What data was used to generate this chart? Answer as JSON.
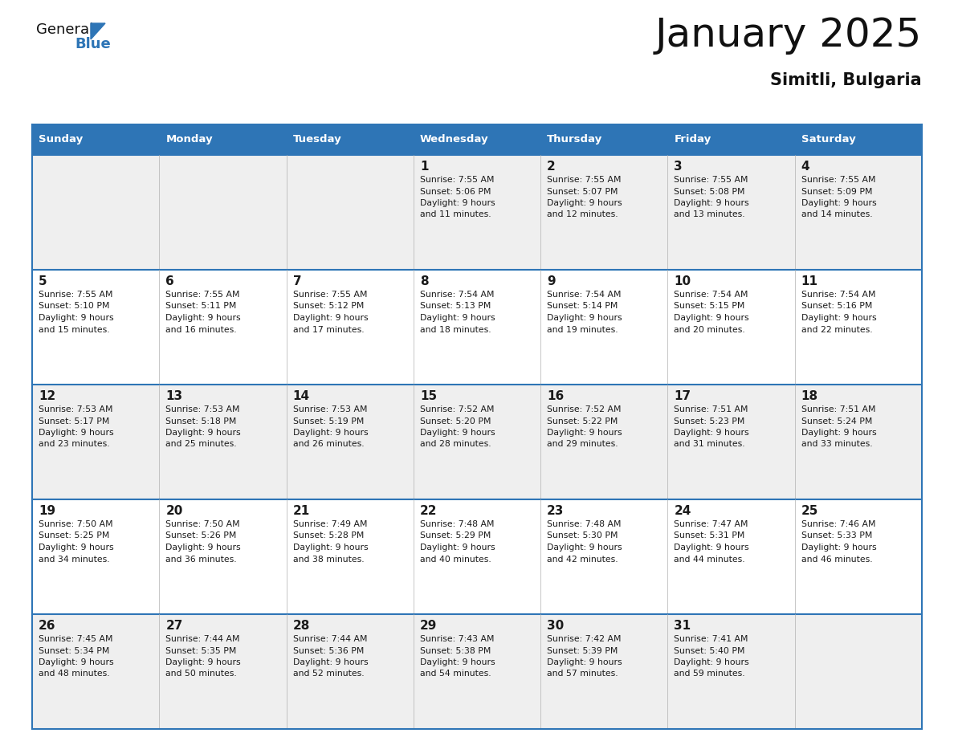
{
  "title": "January 2025",
  "subtitle": "Simitli, Bulgaria",
  "header_color": "#2E75B6",
  "header_text_color": "#FFFFFF",
  "cell_bg_row0": "#EFEFEF",
  "cell_bg_row1": "#FFFFFF",
  "cell_bg_row2": "#EFEFEF",
  "cell_bg_row3": "#FFFFFF",
  "cell_bg_row4": "#EFEFEF",
  "border_color": "#2E75B6",
  "text_color": "#1a1a1a",
  "days_of_week": [
    "Sunday",
    "Monday",
    "Tuesday",
    "Wednesday",
    "Thursday",
    "Friday",
    "Saturday"
  ],
  "weeks": [
    [
      {
        "day": "",
        "sunrise": "",
        "sunset": "",
        "daylight1": "",
        "daylight2": ""
      },
      {
        "day": "",
        "sunrise": "",
        "sunset": "",
        "daylight1": "",
        "daylight2": ""
      },
      {
        "day": "",
        "sunrise": "",
        "sunset": "",
        "daylight1": "",
        "daylight2": ""
      },
      {
        "day": "1",
        "sunrise": "Sunrise: 7:55 AM",
        "sunset": "Sunset: 5:06 PM",
        "daylight1": "Daylight: 9 hours",
        "daylight2": "and 11 minutes."
      },
      {
        "day": "2",
        "sunrise": "Sunrise: 7:55 AM",
        "sunset": "Sunset: 5:07 PM",
        "daylight1": "Daylight: 9 hours",
        "daylight2": "and 12 minutes."
      },
      {
        "day": "3",
        "sunrise": "Sunrise: 7:55 AM",
        "sunset": "Sunset: 5:08 PM",
        "daylight1": "Daylight: 9 hours",
        "daylight2": "and 13 minutes."
      },
      {
        "day": "4",
        "sunrise": "Sunrise: 7:55 AM",
        "sunset": "Sunset: 5:09 PM",
        "daylight1": "Daylight: 9 hours",
        "daylight2": "and 14 minutes."
      }
    ],
    [
      {
        "day": "5",
        "sunrise": "Sunrise: 7:55 AM",
        "sunset": "Sunset: 5:10 PM",
        "daylight1": "Daylight: 9 hours",
        "daylight2": "and 15 minutes."
      },
      {
        "day": "6",
        "sunrise": "Sunrise: 7:55 AM",
        "sunset": "Sunset: 5:11 PM",
        "daylight1": "Daylight: 9 hours",
        "daylight2": "and 16 minutes."
      },
      {
        "day": "7",
        "sunrise": "Sunrise: 7:55 AM",
        "sunset": "Sunset: 5:12 PM",
        "daylight1": "Daylight: 9 hours",
        "daylight2": "and 17 minutes."
      },
      {
        "day": "8",
        "sunrise": "Sunrise: 7:54 AM",
        "sunset": "Sunset: 5:13 PM",
        "daylight1": "Daylight: 9 hours",
        "daylight2": "and 18 minutes."
      },
      {
        "day": "9",
        "sunrise": "Sunrise: 7:54 AM",
        "sunset": "Sunset: 5:14 PM",
        "daylight1": "Daylight: 9 hours",
        "daylight2": "and 19 minutes."
      },
      {
        "day": "10",
        "sunrise": "Sunrise: 7:54 AM",
        "sunset": "Sunset: 5:15 PM",
        "daylight1": "Daylight: 9 hours",
        "daylight2": "and 20 minutes."
      },
      {
        "day": "11",
        "sunrise": "Sunrise: 7:54 AM",
        "sunset": "Sunset: 5:16 PM",
        "daylight1": "Daylight: 9 hours",
        "daylight2": "and 22 minutes."
      }
    ],
    [
      {
        "day": "12",
        "sunrise": "Sunrise: 7:53 AM",
        "sunset": "Sunset: 5:17 PM",
        "daylight1": "Daylight: 9 hours",
        "daylight2": "and 23 minutes."
      },
      {
        "day": "13",
        "sunrise": "Sunrise: 7:53 AM",
        "sunset": "Sunset: 5:18 PM",
        "daylight1": "Daylight: 9 hours",
        "daylight2": "and 25 minutes."
      },
      {
        "day": "14",
        "sunrise": "Sunrise: 7:53 AM",
        "sunset": "Sunset: 5:19 PM",
        "daylight1": "Daylight: 9 hours",
        "daylight2": "and 26 minutes."
      },
      {
        "day": "15",
        "sunrise": "Sunrise: 7:52 AM",
        "sunset": "Sunset: 5:20 PM",
        "daylight1": "Daylight: 9 hours",
        "daylight2": "and 28 minutes."
      },
      {
        "day": "16",
        "sunrise": "Sunrise: 7:52 AM",
        "sunset": "Sunset: 5:22 PM",
        "daylight1": "Daylight: 9 hours",
        "daylight2": "and 29 minutes."
      },
      {
        "day": "17",
        "sunrise": "Sunrise: 7:51 AM",
        "sunset": "Sunset: 5:23 PM",
        "daylight1": "Daylight: 9 hours",
        "daylight2": "and 31 minutes."
      },
      {
        "day": "18",
        "sunrise": "Sunrise: 7:51 AM",
        "sunset": "Sunset: 5:24 PM",
        "daylight1": "Daylight: 9 hours",
        "daylight2": "and 33 minutes."
      }
    ],
    [
      {
        "day": "19",
        "sunrise": "Sunrise: 7:50 AM",
        "sunset": "Sunset: 5:25 PM",
        "daylight1": "Daylight: 9 hours",
        "daylight2": "and 34 minutes."
      },
      {
        "day": "20",
        "sunrise": "Sunrise: 7:50 AM",
        "sunset": "Sunset: 5:26 PM",
        "daylight1": "Daylight: 9 hours",
        "daylight2": "and 36 minutes."
      },
      {
        "day": "21",
        "sunrise": "Sunrise: 7:49 AM",
        "sunset": "Sunset: 5:28 PM",
        "daylight1": "Daylight: 9 hours",
        "daylight2": "and 38 minutes."
      },
      {
        "day": "22",
        "sunrise": "Sunrise: 7:48 AM",
        "sunset": "Sunset: 5:29 PM",
        "daylight1": "Daylight: 9 hours",
        "daylight2": "and 40 minutes."
      },
      {
        "day": "23",
        "sunrise": "Sunrise: 7:48 AM",
        "sunset": "Sunset: 5:30 PM",
        "daylight1": "Daylight: 9 hours",
        "daylight2": "and 42 minutes."
      },
      {
        "day": "24",
        "sunrise": "Sunrise: 7:47 AM",
        "sunset": "Sunset: 5:31 PM",
        "daylight1": "Daylight: 9 hours",
        "daylight2": "and 44 minutes."
      },
      {
        "day": "25",
        "sunrise": "Sunrise: 7:46 AM",
        "sunset": "Sunset: 5:33 PM",
        "daylight1": "Daylight: 9 hours",
        "daylight2": "and 46 minutes."
      }
    ],
    [
      {
        "day": "26",
        "sunrise": "Sunrise: 7:45 AM",
        "sunset": "Sunset: 5:34 PM",
        "daylight1": "Daylight: 9 hours",
        "daylight2": "and 48 minutes."
      },
      {
        "day": "27",
        "sunrise": "Sunrise: 7:44 AM",
        "sunset": "Sunset: 5:35 PM",
        "daylight1": "Daylight: 9 hours",
        "daylight2": "and 50 minutes."
      },
      {
        "day": "28",
        "sunrise": "Sunrise: 7:44 AM",
        "sunset": "Sunset: 5:36 PM",
        "daylight1": "Daylight: 9 hours",
        "daylight2": "and 52 minutes."
      },
      {
        "day": "29",
        "sunrise": "Sunrise: 7:43 AM",
        "sunset": "Sunset: 5:38 PM",
        "daylight1": "Daylight: 9 hours",
        "daylight2": "and 54 minutes."
      },
      {
        "day": "30",
        "sunrise": "Sunrise: 7:42 AM",
        "sunset": "Sunset: 5:39 PM",
        "daylight1": "Daylight: 9 hours",
        "daylight2": "and 57 minutes."
      },
      {
        "day": "31",
        "sunrise": "Sunrise: 7:41 AM",
        "sunset": "Sunset: 5:40 PM",
        "daylight1": "Daylight: 9 hours",
        "daylight2": "and 59 minutes."
      },
      {
        "day": "",
        "sunrise": "",
        "sunset": "",
        "daylight1": "",
        "daylight2": ""
      }
    ]
  ]
}
